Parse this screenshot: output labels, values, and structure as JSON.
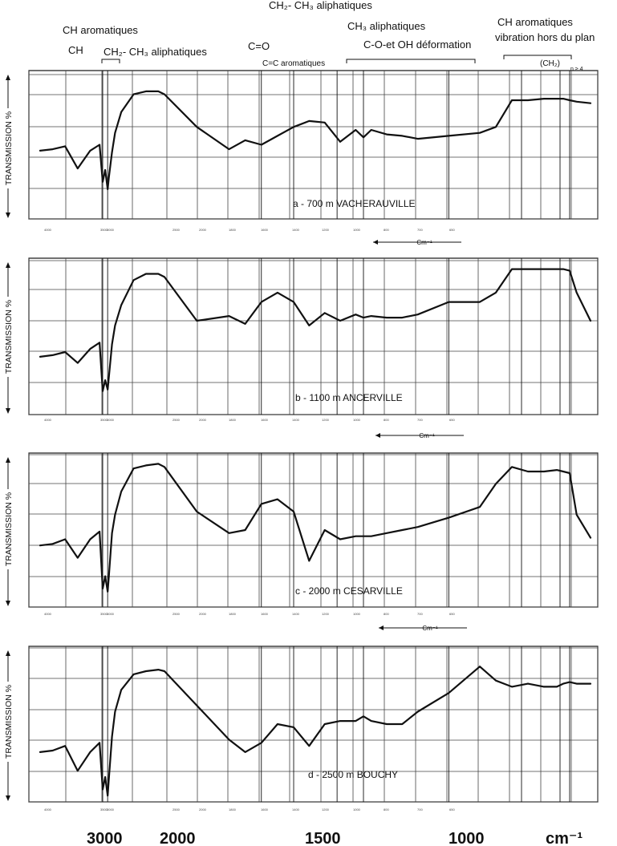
{
  "header_annotations": {
    "ch": "CH",
    "ch_aromatiques": "CH aromatiques",
    "ch2_ch3_aliphatiques_left": "CH₂- CH₃ aliphatiques",
    "c_o": "C=O",
    "c_c_aromatiques": "C=C aromatiques",
    "ch2_ch3_aliphatiques_top": "CH₂- CH₃ aliphatiques",
    "ch3_aliphatiques": "CH₃ aliphatiques",
    "c_o_oh_deformation": "C-O-et OH déformation",
    "ch_aromatiques_right": "CH aromatiques",
    "vibration_hors_du_plan": "vibration hors du plan",
    "ch2_n": "(CH₂)",
    "n_sub": "n ≥ 4"
  },
  "axis_unit_small": "Cm⁻¹",
  "bottom_axis": {
    "labels": [
      "3000",
      "2000",
      "1500",
      "1000"
    ],
    "unit": "cm⁻¹"
  },
  "chart_data": [
    {
      "type": "line",
      "title": "a - 700 m VACHERAUVILLE",
      "ylabel": "TRANSMISSION %",
      "xlabel": "Cm⁻¹",
      "x_unit": "cm-1",
      "ylim": [
        0,
        100
      ],
      "grid": true,
      "key_bands": [
        3000,
        2920,
        1700,
        1600,
        1460,
        1375,
        1100,
        870,
        750,
        720
      ],
      "series": [
        {
          "x": [
            4000,
            3800,
            3600,
            3400,
            3200,
            3050,
            3000,
            2960,
            2920,
            2900,
            2850,
            2800,
            2700,
            2500,
            2300,
            2100,
            2000,
            1900,
            1800,
            1750,
            1700,
            1650,
            1600,
            1550,
            1500,
            1450,
            1400,
            1375,
            1350,
            1300,
            1250,
            1200,
            1100,
            1000,
            950,
            900,
            850,
            800,
            760,
            740,
            720,
            700,
            660
          ],
          "values": [
            46,
            47,
            49,
            34,
            46,
            50,
            25,
            33,
            20,
            28,
            45,
            58,
            72,
            84,
            86,
            86,
            84,
            62,
            47,
            53,
            50,
            56,
            62,
            66,
            65,
            52,
            60,
            55,
            60,
            57,
            56,
            54,
            56,
            58,
            62,
            80,
            80,
            81,
            81,
            81,
            80,
            79,
            78
          ]
        }
      ]
    },
    {
      "type": "line",
      "title": "b - 1100 m ANCERVILLE",
      "ylabel": "TRANSMISSION %",
      "xlabel": "Cm⁻¹",
      "x_unit": "cm-1",
      "ylim": [
        0,
        100
      ],
      "grid": true,
      "key_bands": [
        3000,
        2920,
        1700,
        1600,
        1460,
        1375,
        1100,
        870,
        750,
        720
      ],
      "series": [
        {
          "x": [
            4000,
            3800,
            3600,
            3400,
            3200,
            3050,
            3000,
            2960,
            2920,
            2900,
            2850,
            2800,
            2700,
            2500,
            2300,
            2100,
            2000,
            1900,
            1800,
            1750,
            1700,
            1650,
            1600,
            1550,
            1500,
            1450,
            1400,
            1375,
            1350,
            1300,
            1250,
            1200,
            1100,
            1000,
            950,
            900,
            850,
            800,
            760,
            740,
            720,
            700,
            660
          ],
          "values": [
            37,
            38,
            40,
            33,
            42,
            46,
            15,
            22,
            16,
            24,
            45,
            57,
            70,
            86,
            90,
            90,
            88,
            60,
            63,
            58,
            72,
            78,
            72,
            57,
            65,
            60,
            64,
            62,
            63,
            62,
            62,
            64,
            72,
            72,
            78,
            93,
            93,
            93,
            93,
            93,
            92,
            78,
            60
          ]
        }
      ]
    },
    {
      "type": "line",
      "title": "c - 2000 m CESARVILLE",
      "ylabel": "TRANSMISSION %",
      "xlabel": "Cm⁻¹",
      "x_unit": "cm-1",
      "ylim": [
        0,
        100
      ],
      "grid": true,
      "key_bands": [
        3000,
        2920,
        1700,
        1600,
        1460,
        1375,
        1100,
        870,
        750,
        720
      ],
      "series": [
        {
          "x": [
            4000,
            3800,
            3600,
            3400,
            3200,
            3050,
            3000,
            2960,
            2920,
            2900,
            2850,
            2800,
            2700,
            2500,
            2300,
            2100,
            2000,
            1900,
            1800,
            1750,
            1700,
            1650,
            1600,
            1550,
            1500,
            1450,
            1400,
            1375,
            1350,
            1300,
            1250,
            1200,
            1100,
            1000,
            950,
            900,
            850,
            800,
            760,
            740,
            720,
            700,
            660
          ],
          "values": [
            40,
            41,
            44,
            32,
            44,
            49,
            12,
            20,
            10,
            20,
            48,
            60,
            75,
            90,
            92,
            93,
            91,
            62,
            48,
            50,
            67,
            70,
            62,
            30,
            50,
            44,
            46,
            46,
            46,
            48,
            50,
            52,
            58,
            65,
            80,
            91,
            88,
            88,
            89,
            88,
            87,
            60,
            45
          ]
        }
      ]
    },
    {
      "type": "line",
      "title": "d - 2500 m BOUCHY",
      "ylabel": "TRANSMISSION %",
      "xlabel": "",
      "x_unit": "cm-1",
      "ylim": [
        0,
        100
      ],
      "grid": true,
      "key_bands": [
        3000,
        2920,
        1700,
        1600,
        1460,
        1375,
        1100,
        870,
        750,
        720
      ],
      "series": [
        {
          "x": [
            4000,
            3800,
            3600,
            3400,
            3200,
            3050,
            3000,
            2960,
            2920,
            2900,
            2850,
            2800,
            2700,
            2500,
            2300,
            2100,
            2000,
            1900,
            1800,
            1750,
            1700,
            1650,
            1600,
            1550,
            1500,
            1450,
            1400,
            1375,
            1350,
            1300,
            1250,
            1200,
            1100,
            1000,
            950,
            900,
            850,
            800,
            760,
            740,
            720,
            700,
            660
          ],
          "values": [
            32,
            33,
            36,
            20,
            32,
            38,
            8,
            16,
            4,
            15,
            42,
            58,
            72,
            82,
            84,
            85,
            84,
            62,
            40,
            32,
            38,
            50,
            48,
            36,
            50,
            52,
            52,
            55,
            52,
            50,
            50,
            58,
            70,
            87,
            78,
            74,
            76,
            74,
            74,
            76,
            77,
            76,
            76
          ]
        }
      ]
    }
  ]
}
